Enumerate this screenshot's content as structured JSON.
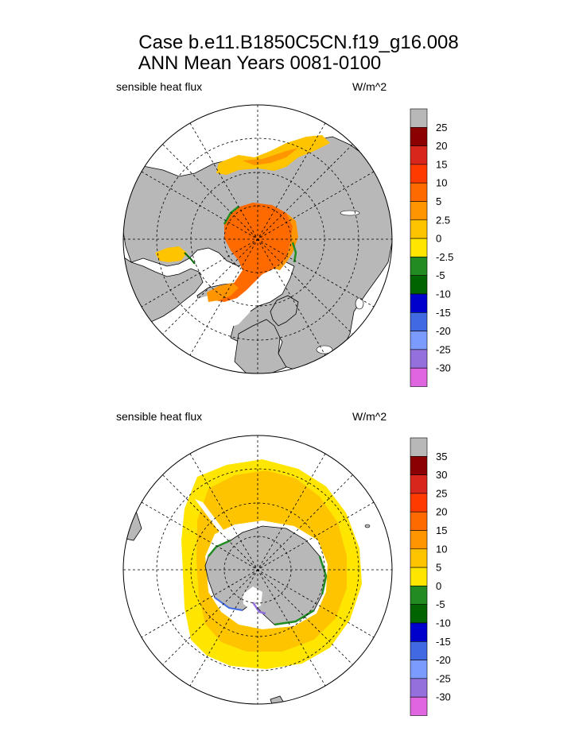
{
  "header": {
    "title_line1": "Case b.e11.B1850C5CN.f19_g16.008",
    "title_line2": "ANN Mean     Years 0081-0100"
  },
  "chart_data": [
    {
      "type": "heatmap",
      "name": "Northern Hemisphere polar stereographic",
      "variable": "sensible heat flux",
      "units": "W/m^2",
      "colorbar_labels": [
        "25",
        "20",
        "15",
        "10",
        "5",
        "2.5",
        "0",
        "-2.5",
        "-5",
        "-10",
        "-15",
        "-20",
        "-25",
        "-30"
      ],
      "colorbar_colors": [
        "#b8b8b8",
        "#8b0000",
        "#d9261c",
        "#ff3b00",
        "#ff6a00",
        "#ff9500",
        "#ffc400",
        "#ffe600",
        "#228b22",
        "#006400",
        "#0000cd",
        "#4169e1",
        "#7b9bff",
        "#9370db",
        "#e066e0"
      ]
    },
    {
      "type": "heatmap",
      "name": "Southern Hemisphere polar stereographic",
      "variable": "sensible heat flux",
      "units": "W/m^2",
      "colorbar_labels": [
        "35",
        "30",
        "25",
        "20",
        "15",
        "10",
        "5",
        "0",
        "-5",
        "-10",
        "-15",
        "-20",
        "-25",
        "-30"
      ],
      "colorbar_colors": [
        "#b8b8b8",
        "#8b0000",
        "#d9261c",
        "#ff3b00",
        "#ff6a00",
        "#ff9500",
        "#ffc400",
        "#ffe600",
        "#228b22",
        "#006400",
        "#0000cd",
        "#4169e1",
        "#7b9bff",
        "#9370db",
        "#e066e0"
      ]
    }
  ]
}
